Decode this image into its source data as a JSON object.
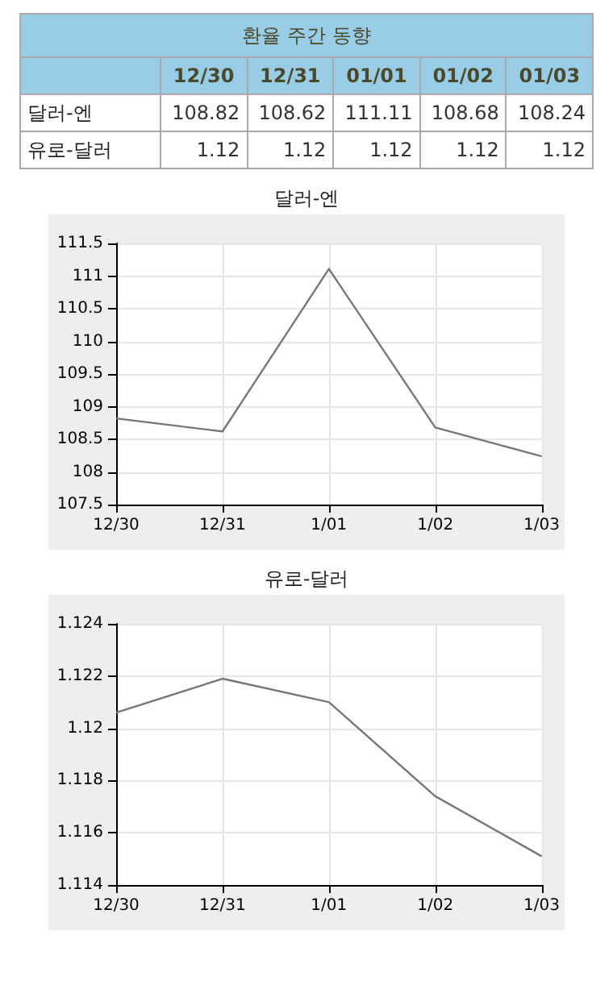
{
  "chart_data": [
    {
      "type": "other",
      "title": "환율 주간 동향",
      "data_labels": true,
      "categories": [
        "12/30",
        "12/31",
        "01/01",
        "01/02",
        "01/03"
      ],
      "series": [
        {
          "name": "달러-엔",
          "values": [
            108.82,
            108.62,
            111.11,
            108.68,
            108.24
          ]
        },
        {
          "name": "유로-달러",
          "values": [
            1.12,
            1.12,
            1.12,
            1.12,
            1.12
          ]
        }
      ]
    },
    {
      "type": "line",
      "title": "달러-엔",
      "categories": [
        "12/30",
        "12/31",
        "1/01",
        "1/02",
        "1/03"
      ],
      "series": [
        {
          "color": "#777777",
          "values": [
            108.82,
            108.62,
            111.11,
            108.68,
            108.24
          ]
        }
      ],
      "ylim": [
        107.5,
        111.5
      ],
      "yticks": [
        107.5,
        108,
        108.5,
        109,
        109.5,
        110,
        110.5,
        111,
        111.5
      ],
      "grid": true,
      "marker": "none"
    },
    {
      "type": "line",
      "title": "유로-달러",
      "categories": [
        "12/30",
        "12/31",
        "1/01",
        "1/02",
        "1/03"
      ],
      "series": [
        {
          "color": "#777777",
          "values": [
            1.1206,
            1.1219,
            1.121,
            1.1174,
            1.1151
          ]
        }
      ],
      "ylim": [
        1.114,
        1.124
      ],
      "yticks": [
        1.114,
        1.116,
        1.118,
        1.12,
        1.122,
        1.124
      ],
      "grid": true,
      "marker": "none"
    }
  ]
}
